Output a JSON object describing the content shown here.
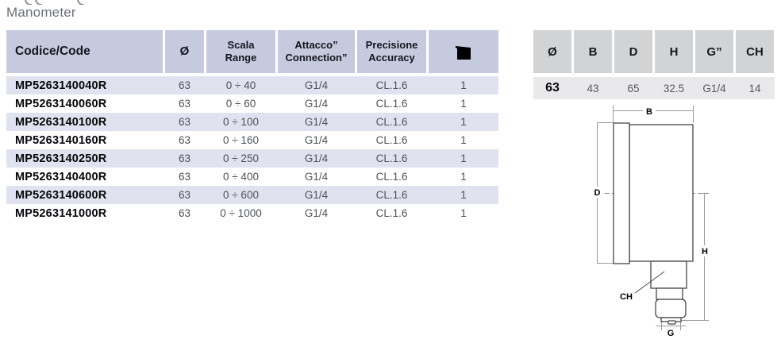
{
  "page": {
    "title": "Manometer"
  },
  "products_table": {
    "headers": {
      "code": "Codice/Code",
      "diameter": "Ø",
      "scala": [
        "Scala",
        "Range"
      ],
      "attacco": [
        "Attacco”",
        "Connection”"
      ],
      "precisione": [
        "Precisione",
        "Accuracy"
      ],
      "pack_icon": "package-icon"
    },
    "rows": [
      {
        "code": "MP5263140040R",
        "diameter": "63",
        "range": "0 ÷ 40",
        "connection": "G1/4",
        "accuracy": "CL.1.6",
        "pack": "1"
      },
      {
        "code": "MP5263140060R",
        "diameter": "63",
        "range": "0 ÷ 60",
        "connection": "G1/4",
        "accuracy": "CL.1.6",
        "pack": "1"
      },
      {
        "code": "MP5263140100R",
        "diameter": "63",
        "range": "0 ÷ 100",
        "connection": "G1/4",
        "accuracy": "CL.1.6",
        "pack": "1"
      },
      {
        "code": "MP5263140160R",
        "diameter": "63",
        "range": "0 ÷ 160",
        "connection": "G1/4",
        "accuracy": "CL.1.6",
        "pack": "1"
      },
      {
        "code": "MP5263140250R",
        "diameter": "63",
        "range": "0 ÷ 250",
        "connection": "G1/4",
        "accuracy": "CL.1.6",
        "pack": "1"
      },
      {
        "code": "MP5263140400R",
        "diameter": "63",
        "range": "0 ÷ 400",
        "connection": "G1/4",
        "accuracy": "CL.1.6",
        "pack": "1"
      },
      {
        "code": "MP5263140600R",
        "diameter": "63",
        "range": "0 ÷ 600",
        "connection": "G1/4",
        "accuracy": "CL.1.6",
        "pack": "1"
      },
      {
        "code": "MP5263141000R",
        "diameter": "63",
        "range": "0 ÷ 1000",
        "connection": "G1/4",
        "accuracy": "CL.1.6",
        "pack": "1"
      }
    ]
  },
  "dimensions_table": {
    "headers": [
      "Ø",
      "B",
      "D",
      "H",
      "G”",
      "CH"
    ],
    "values": [
      "63",
      "43",
      "65",
      "32.5",
      "G1/4",
      "14"
    ]
  },
  "drawing": {
    "labels": {
      "b": "B",
      "d": "D",
      "h": "H",
      "ch": "CH",
      "g": "G"
    }
  },
  "colors": {
    "header_blue": "#c5cade",
    "row_shaded": "#e0e3ef",
    "header_gray": "#d2d3d5",
    "value_row_gray": "#e9e9eb",
    "title_gray": "#6d7078"
  }
}
